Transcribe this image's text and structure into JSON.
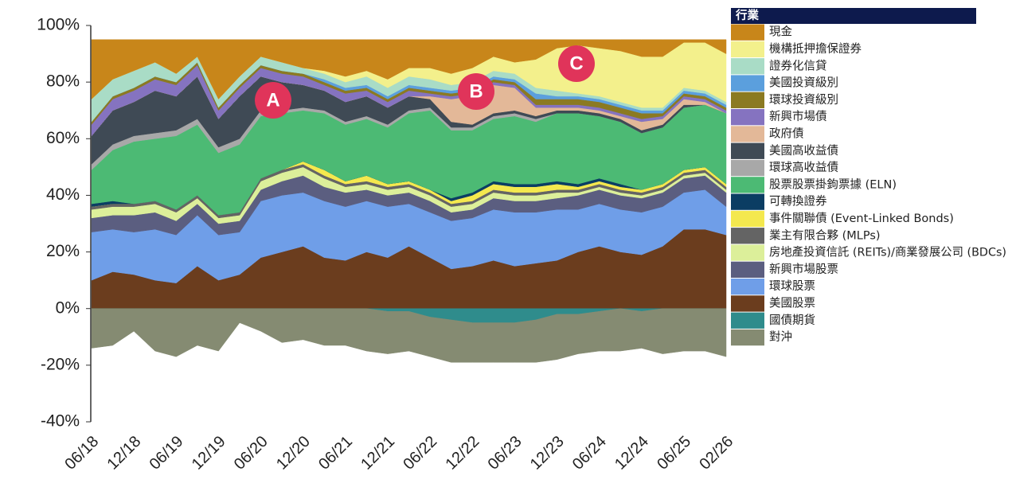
{
  "chart_data": {
    "type": "stacked-area",
    "legend_title": "行業",
    "legend_position": "right",
    "annotations": [
      "A",
      "B",
      "C"
    ],
    "annotation_color": "#e0345a",
    "categories": [
      "06/18",
      null,
      "12/18",
      null,
      "06/19",
      null,
      "12/19",
      null,
      "06/20",
      null,
      "12/20",
      null,
      "06/21",
      null,
      "12/21",
      null,
      "06/22",
      null,
      "12/22",
      null,
      "06/23",
      null,
      "12/23",
      null,
      "06/24",
      null,
      "12/24",
      null,
      "06/25",
      null,
      "02/26"
    ],
    "ylim": [
      -40,
      100
    ],
    "yticks": [
      {
        "value": -40,
        "label": "-40%"
      },
      {
        "value": -20,
        "label": "-20%"
      },
      {
        "value": 0,
        "label": "0%"
      },
      {
        "value": 20,
        "label": "20%"
      },
      {
        "value": 40,
        "label": "40%"
      },
      {
        "value": 60,
        "label": "60%"
      },
      {
        "value": 80,
        "label": "80%"
      },
      {
        "value": 100,
        "label": "100%"
      }
    ],
    "series": [
      {
        "name": "現金",
        "color": "#c8861a",
        "values": [
          21,
          14,
          11,
          8,
          12,
          6,
          21,
          13,
          6,
          8,
          10,
          11,
          13,
          11,
          14,
          10,
          10,
          12,
          10,
          6,
          8,
          7,
          3,
          2,
          3,
          4,
          6,
          6,
          1,
          1,
          5
        ]
      },
      {
        "name": "機構抵押擔保證券",
        "color": "#f3f08c",
        "values": [
          0,
          0,
          0,
          0,
          0,
          0,
          0,
          0,
          0,
          0,
          0,
          1,
          2,
          2,
          3,
          3,
          4,
          4,
          5,
          5,
          4,
          10,
          15,
          17,
          17,
          18,
          18,
          18,
          16,
          17,
          17
        ]
      },
      {
        "name": "證券化信貸",
        "color": "#a9dcc6",
        "values": [
          8,
          6,
          6,
          5,
          3,
          2,
          3,
          3,
          3,
          3,
          2,
          2,
          2,
          3,
          3,
          3,
          3,
          2,
          2,
          2,
          2,
          2,
          2,
          1,
          1,
          1,
          1,
          1,
          1,
          1,
          1
        ]
      },
      {
        "name": "美國投資級別",
        "color": "#5b9fdd",
        "values": [
          0,
          0,
          0,
          0,
          0,
          0,
          0,
          0,
          0,
          0,
          0,
          1,
          1,
          1,
          1,
          1,
          1,
          1,
          1,
          1,
          1,
          2,
          1,
          1,
          1,
          1,
          1,
          1,
          1,
          1,
          1
        ]
      },
      {
        "name": "環球投資級別",
        "color": "#8b7a22",
        "values": [
          1,
          1,
          1,
          1,
          1,
          1,
          1,
          1,
          1,
          1,
          1,
          1,
          1,
          1,
          1,
          1,
          1,
          1,
          1,
          1,
          1,
          2,
          2,
          2,
          2,
          2,
          2,
          1,
          1,
          1,
          1
        ]
      },
      {
        "name": "新興市場債",
        "color": "#8573c0",
        "values": [
          4,
          4,
          4,
          4,
          4,
          4,
          3,
          3,
          3,
          3,
          3,
          2,
          3,
          2,
          2,
          2,
          1,
          1,
          1,
          1,
          1,
          1,
          1,
          1,
          1,
          1,
          1,
          1,
          1,
          1,
          1
        ]
      },
      {
        "name": "政府債",
        "color": "#e3b898",
        "values": [
          0,
          0,
          0,
          0,
          0,
          0,
          0,
          0,
          0,
          0,
          0,
          0,
          0,
          0,
          0,
          0,
          1,
          8,
          10,
          10,
          8,
          3,
          1,
          1,
          1,
          1,
          3,
          2,
          2,
          1,
          0
        ]
      },
      {
        "name": "美國高收益債",
        "color": "#3f4a55",
        "values": [
          10,
          12,
          12,
          15,
          12,
          15,
          10,
          15,
          12,
          10,
          8,
          7,
          7,
          7,
          6,
          5,
          3,
          2,
          1,
          1,
          1,
          1,
          1,
          1,
          1,
          1,
          1,
          1,
          1,
          0,
          0
        ]
      },
      {
        "name": "環球高收益債",
        "color": "#a8a8a8",
        "values": [
          2,
          2,
          2,
          2,
          2,
          2,
          2,
          2,
          2,
          1,
          1,
          1,
          1,
          1,
          1,
          1,
          1,
          1,
          1,
          1,
          1,
          1,
          0,
          0,
          0,
          0,
          0,
          0,
          0,
          0,
          0
        ]
      },
      {
        "name": "股票股票掛鉤票據 (ELN)",
        "color": "#4cba74",
        "values": [
          12,
          18,
          22,
          22,
          26,
          25,
          22,
          24,
          22,
          20,
          18,
          20,
          20,
          20,
          20,
          24,
          28,
          24,
          22,
          22,
          24,
          22,
          24,
          25,
          22,
          22,
          20,
          20,
          22,
          22,
          25
        ]
      },
      {
        "name": "可轉換證券",
        "color": "#0b3d63",
        "values": [
          1,
          1,
          0,
          0,
          0,
          0,
          0,
          0,
          0,
          0,
          0,
          0,
          0,
          0,
          0,
          0,
          0,
          1,
          1,
          1,
          1,
          1,
          1,
          1,
          1,
          1,
          0,
          0,
          0,
          0,
          0
        ]
      },
      {
        "name": "事件關聯債 (Event-Linked Bonds)",
        "color": "#f4e84e",
        "values": [
          0,
          0,
          0,
          0,
          0,
          0,
          0,
          0,
          0,
          0,
          1,
          2,
          1,
          2,
          1,
          1,
          1,
          1,
          2,
          2,
          2,
          2,
          2,
          1,
          1,
          1,
          1,
          1,
          1,
          1,
          1
        ]
      },
      {
        "name": "業主有限合夥 (MLPs)",
        "color": "#646464",
        "values": [
          1,
          1,
          1,
          1,
          1,
          1,
          1,
          1,
          1,
          1,
          1,
          1,
          1,
          1,
          1,
          1,
          1,
          1,
          1,
          1,
          1,
          1,
          1,
          1,
          1,
          1,
          1,
          1,
          1,
          1,
          1
        ]
      },
      {
        "name": "房地產投資信託 (REITs)/商業發展公司 (BDCs)",
        "color": "#dcef9a",
        "values": [
          3,
          3,
          3,
          3,
          3,
          2,
          2,
          2,
          3,
          3,
          3,
          3,
          2,
          2,
          2,
          2,
          2,
          2,
          2,
          2,
          2,
          2,
          2,
          1,
          1,
          1,
          1,
          1,
          1,
          1,
          1
        ]
      },
      {
        "name": "新興市場股票",
        "color": "#5b5e80",
        "values": [
          5,
          5,
          6,
          6,
          5,
          4,
          4,
          4,
          4,
          5,
          6,
          5,
          5,
          4,
          4,
          4,
          4,
          3,
          3,
          4,
          4,
          4,
          4,
          5,
          5,
          5,
          5,
          5,
          5,
          5,
          5
        ]
      },
      {
        "name": "環球股票",
        "color": "#6f9ee8",
        "values": [
          17,
          15,
          15,
          18,
          17,
          18,
          16,
          15,
          20,
          20,
          19,
          20,
          19,
          18,
          18,
          15,
          16,
          17,
          17,
          18,
          19,
          18,
          18,
          15,
          15,
          15,
          15,
          14,
          13,
          14,
          10
        ]
      },
      {
        "name": "美國股票",
        "color": "#6b3d1e",
        "values": [
          10,
          13,
          12,
          10,
          9,
          15,
          10,
          12,
          18,
          20,
          22,
          18,
          17,
          20,
          18,
          22,
          18,
          14,
          15,
          17,
          15,
          16,
          17,
          20,
          22,
          20,
          19,
          22,
          28,
          28,
          26
        ]
      },
      {
        "name": "國債期貨",
        "color": "#2f8c8c",
        "values": [
          0,
          0,
          0,
          0,
          0,
          0,
          0,
          0,
          0,
          0,
          0,
          0,
          0,
          0,
          -1,
          -1,
          -3,
          -4,
          -5,
          -5,
          -5,
          -4,
          -2,
          -2,
          -1,
          0,
          -1,
          0,
          0,
          0,
          0
        ]
      },
      {
        "name": "對沖",
        "color": "#858b72",
        "values": [
          -14,
          -13,
          -8,
          -15,
          -17,
          -13,
          -15,
          -5,
          -8,
          -12,
          -11,
          -13,
          -13,
          -15,
          -15,
          -14,
          -14,
          -15,
          -14,
          -14,
          -14,
          -15,
          -16,
          -14,
          -14,
          -15,
          -13,
          -16,
          -15,
          -15,
          -17
        ]
      }
    ]
  }
}
